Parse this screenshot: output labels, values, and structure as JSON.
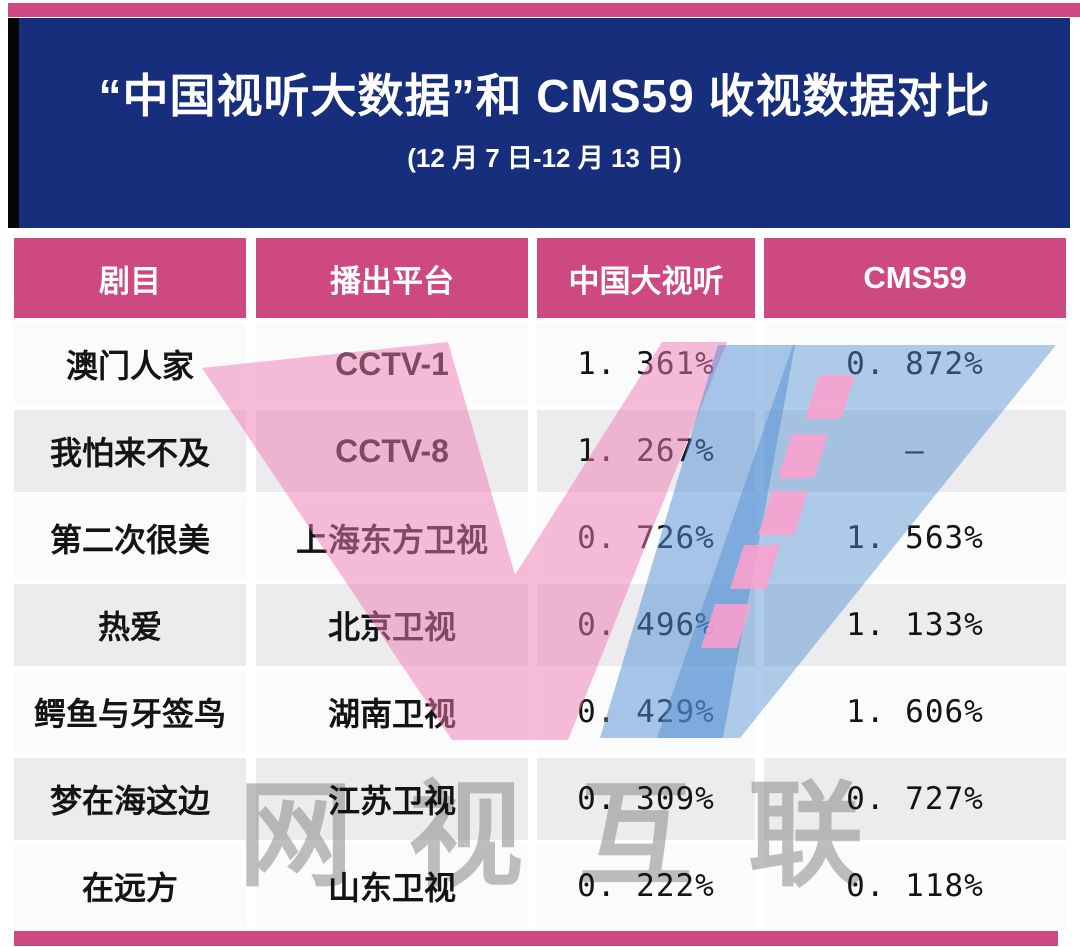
{
  "header": {
    "title": "“中国视听大数据”和 CMS59 收视数据对比",
    "subtitle": "(12 月 7 日-12 月 13 日)"
  },
  "table": {
    "columns": [
      "剧目",
      "播出平台",
      "中国大视听",
      "CMS59"
    ],
    "rows": [
      {
        "drama": "澳门人家",
        "platform": "CCTV-1",
        "big_data": "1. 361%",
        "cms59": "0. 872%"
      },
      {
        "drama": "我怕来不及",
        "platform": "CCTV-8",
        "big_data": "1. 267%",
        "cms59": "–"
      },
      {
        "drama": "第二次很美",
        "platform": "上海东方卫视",
        "big_data": "0. 726%",
        "cms59": "1. 563%"
      },
      {
        "drama": "热爱",
        "platform": "北京卫视",
        "big_data": "0. 496%",
        "cms59": "1. 133%"
      },
      {
        "drama": "鳄鱼与牙签鸟",
        "platform": "湖南卫视",
        "big_data": "0. 429%",
        "cms59": "1. 606%"
      },
      {
        "drama": "梦在海这边",
        "platform": "江苏卫视",
        "big_data": "0. 309%",
        "cms59": "0. 727%"
      },
      {
        "drama": "在远方",
        "platform": "山东卫视",
        "big_data": "0. 222%",
        "cms59": "0. 118%"
      }
    ]
  },
  "watermark": {
    "logo_letter": "W",
    "text": "网视互联"
  },
  "colors": {
    "brand_pink": "#ce4981",
    "banner_navy": "#162e7c",
    "row_gray": "#ececee",
    "row_white": "#fbfbfc",
    "watermark_pink": "#f07ab2",
    "watermark_blue": "#4f8ed2",
    "watermark_dash_pink": "#ff9fce",
    "watermark_gray": "#8a8a8a"
  },
  "chart_data": {
    "type": "table",
    "title": "“中国视听大数据”和 CMS59 收视数据对比",
    "subtitle": "(12 月 7 日-12 月 13 日)",
    "columns": [
      "剧目",
      "播出平台",
      "中国大视听",
      "CMS59"
    ],
    "rows": [
      [
        "澳门人家",
        "CCTV-1",
        "1.361%",
        "0.872%"
      ],
      [
        "我怕来不及",
        "CCTV-8",
        "1.267%",
        "–"
      ],
      [
        "第二次很美",
        "上海东方卫视",
        "0.726%",
        "1.563%"
      ],
      [
        "热爱",
        "北京卫视",
        "0.496%",
        "1.133%"
      ],
      [
        "鳄鱼与牙签鸟",
        "湖南卫视",
        "0.429%",
        "1.606%"
      ],
      [
        "梦在海这边",
        "江苏卫视",
        "0.309%",
        "0.727%"
      ],
      [
        "在远方",
        "山东卫视",
        "0.222%",
        "0.118%"
      ]
    ],
    "notes": "中国大视听 values sorted descending; 我怕来不及 has no CMS59 value (dash)."
  }
}
